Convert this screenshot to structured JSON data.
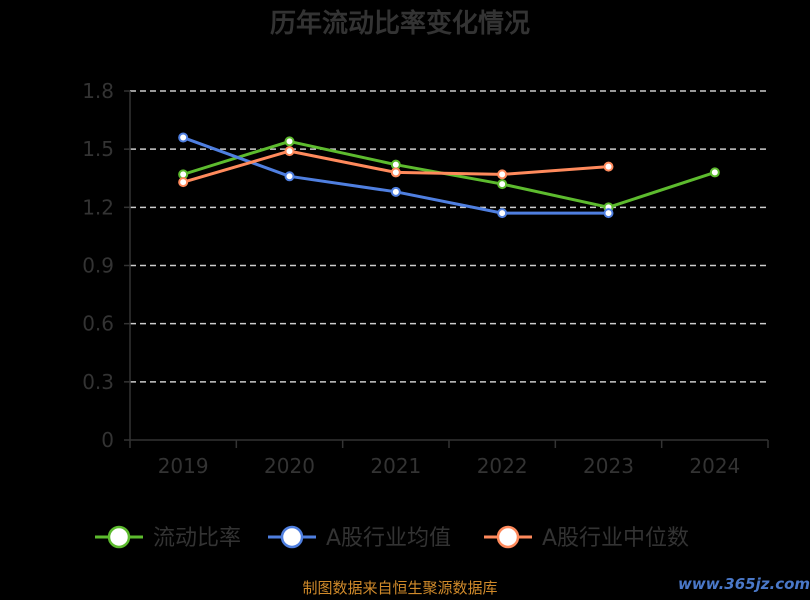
{
  "chart_data": {
    "type": "line",
    "title": "历年流动比率变化情况",
    "categories": [
      "2019",
      "2020",
      "2021",
      "2022",
      "2023",
      "2024"
    ],
    "ylim": [
      0,
      1.8
    ],
    "yticks": [
      "0",
      "0.3",
      "0.6",
      "0.9",
      "1.2",
      "1.5",
      "1.8"
    ],
    "grid": true,
    "legend_position": "bottom",
    "series": [
      {
        "name": "流动比率",
        "color": "#5dbb2e",
        "values": [
          1.37,
          1.54,
          1.42,
          1.32,
          1.2,
          1.38
        ]
      },
      {
        "name": "A股行业均值",
        "color": "#4f7fe0",
        "values": [
          1.56,
          1.36,
          1.28,
          1.17,
          1.17,
          null
        ]
      },
      {
        "name": "A股行业中位数",
        "color": "#ff8a5c",
        "values": [
          1.33,
          1.49,
          1.38,
          1.37,
          1.41,
          null
        ]
      }
    ]
  },
  "footer": {
    "source": "制图数据来自恒生聚源数据库",
    "watermark": "www.365jz.com"
  }
}
